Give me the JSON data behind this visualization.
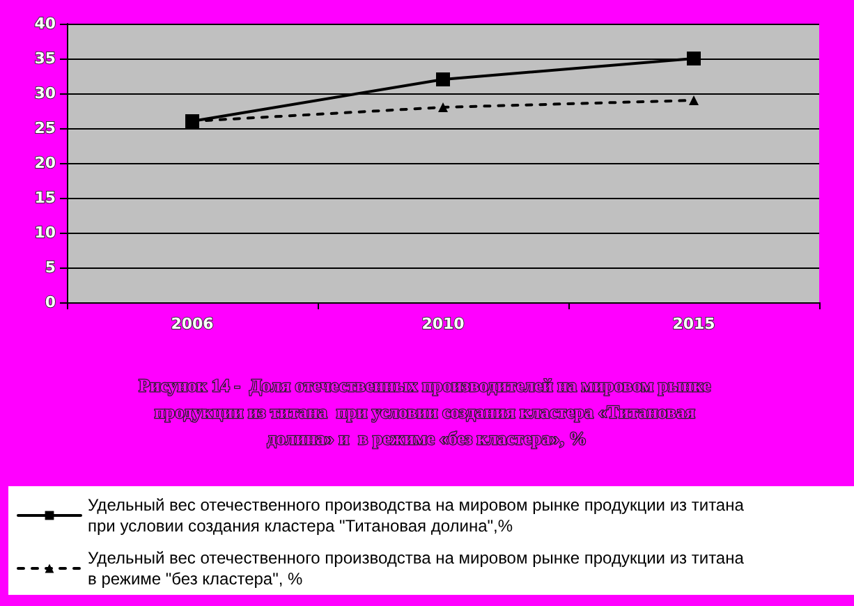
{
  "chart_data": {
    "type": "line",
    "title": "Рисунок 14 -  Доля отечественных производителей на мировом рынке продукции из титана  при условии создания кластера «Титановая долина» и  в режиме «без кластера», %",
    "categories": [
      "2006",
      "2010",
      "2015"
    ],
    "series": [
      {
        "name": "Удельный вес отечественного производства на мировом рынке продукции из титана при условии создания кластера \"Титановая долина\",%",
        "color": "#000000",
        "values": [
          26,
          32,
          35
        ],
        "marker": "square",
        "line_style": "solid"
      },
      {
        "name": "Удельный вес отечественного производства на мировом рынке продукции из титана  в режиме \"без кластера\", %",
        "color": "#000000",
        "values": [
          26,
          28,
          29
        ],
        "marker": "triangle",
        "line_style": "dashed"
      }
    ],
    "ylim": [
      0,
      40
    ],
    "yticks": [
      0,
      5,
      10,
      15,
      20,
      25,
      30,
      35,
      40
    ],
    "grid": "y",
    "legend": "bottom"
  }
}
